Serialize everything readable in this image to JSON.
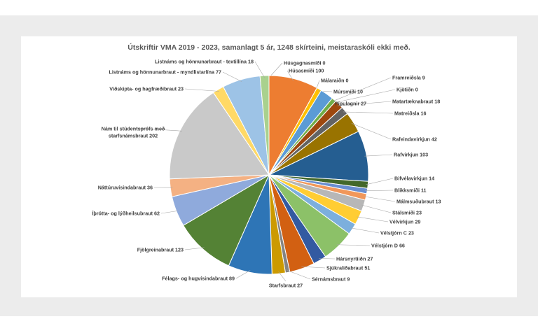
{
  "chart_data": {
    "type": "pie",
    "title": "Útskriftir VMA 2019 - 2023, samanlagt 5 ár,  1248 skírteini, meistaraskóli ekki með.",
    "categories": [
      "Húsgagnasmíði 0",
      "Húsasmíði 100",
      "Málaraiðn 0",
      "Múrsmíði 10",
      "Pípulagnir 27",
      "Framreiðsla 9",
      "Kjötiðn 0",
      "Matartæknabraut 18",
      "Matreiðsla 16",
      "Rafeindavirkjun 42",
      "Rafvirkjun 103",
      "Bifvélavirkjun 14",
      "Blikksmíði 11",
      "Málmsuðubraut 13",
      "Stálsmíði 23",
      "Vélvirkjun 29",
      "Vélstjórn C 23",
      "Vélstjórn D  66",
      "Hársnyrtiiðn 27",
      "Sjúkraliðabraut 51",
      "Sérnámsbraut 9",
      "Starfsbraut 27",
      "Félags- og hugvísindabraut 89",
      "Fjölgreinabraut 123",
      "Íþrótta- og lýðheilsubraut 62",
      "Náttúruvísindabraut 36",
      "Nám til stúdentsprófs með starfsnámsbraut 202",
      "Viðskipta- og hagfræðibraut 23",
      "Listnáms og hönnunarbraut - myndlistarlína 77",
      "Listnáms og hönnunarbraut  - textillína 18"
    ],
    "values": [
      0,
      100,
      0,
      10,
      27,
      9,
      0,
      18,
      16,
      42,
      103,
      14,
      11,
      13,
      23,
      29,
      23,
      66,
      27,
      51,
      9,
      27,
      89,
      123,
      62,
      36,
      202,
      23,
      77,
      18
    ],
    "colors": [
      "#4472C4",
      "#ED7D31",
      "#A5A5A5",
      "#FFC000",
      "#5B9BD5",
      "#70AD47",
      "#264478",
      "#9E480E",
      "#636363",
      "#997300",
      "#255E91",
      "#43682B",
      "#698ED0",
      "#F1975A",
      "#B7B7B7",
      "#FFCD33",
      "#7CAFDD",
      "#8CC168",
      "#335AA1",
      "#D26012",
      "#848484",
      "#CC9A00",
      "#2E75B6",
      "#548235",
      "#8FAADC",
      "#F4B183",
      "#C9C9C9",
      "#FFD966",
      "#9DC3E6",
      "#A9D18E"
    ]
  }
}
